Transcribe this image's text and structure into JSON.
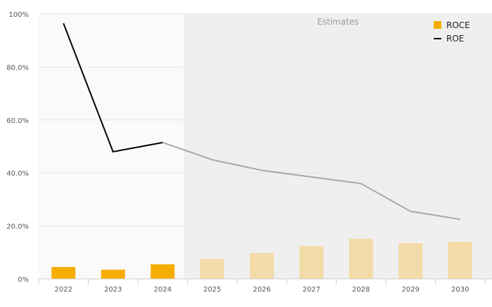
{
  "colors": {
    "roce_actual": "#f5ad00",
    "roce_estimate": "#f2dba6",
    "roe_actual": "#000000",
    "roe_estimate": "#a8a8a8",
    "estimates_background": "#efefef",
    "actuals_background": "#fafafa",
    "grid": "#e6e6e6"
  },
  "chart_data": {
    "type": "bar",
    "categories": [
      "2022",
      "2023",
      "2024",
      "2025",
      "2026",
      "2027",
      "2028",
      "2029",
      "2030"
    ],
    "series": [
      {
        "name": "ROCE",
        "type": "bar",
        "values": [
          4.5,
          3.5,
          5.5,
          7.5,
          9.8,
          12.4,
          15.1,
          13.5,
          14.0
        ]
      },
      {
        "name": "ROE",
        "type": "line",
        "values": [
          96.5,
          48.0,
          51.5,
          45.0,
          41.0,
          38.5,
          36.0,
          25.5,
          22.5
        ]
      }
    ],
    "estimates_from_index": 3,
    "estimates_label": "Estimates",
    "y_ticks": [
      "0%",
      "20.0%",
      "40.0%",
      "60.0%",
      "80.0%",
      "100%"
    ],
    "ylim": [
      0,
      100
    ],
    "grid": true,
    "legend_position": "top-right",
    "title": "",
    "xlabel": "",
    "ylabel": ""
  }
}
